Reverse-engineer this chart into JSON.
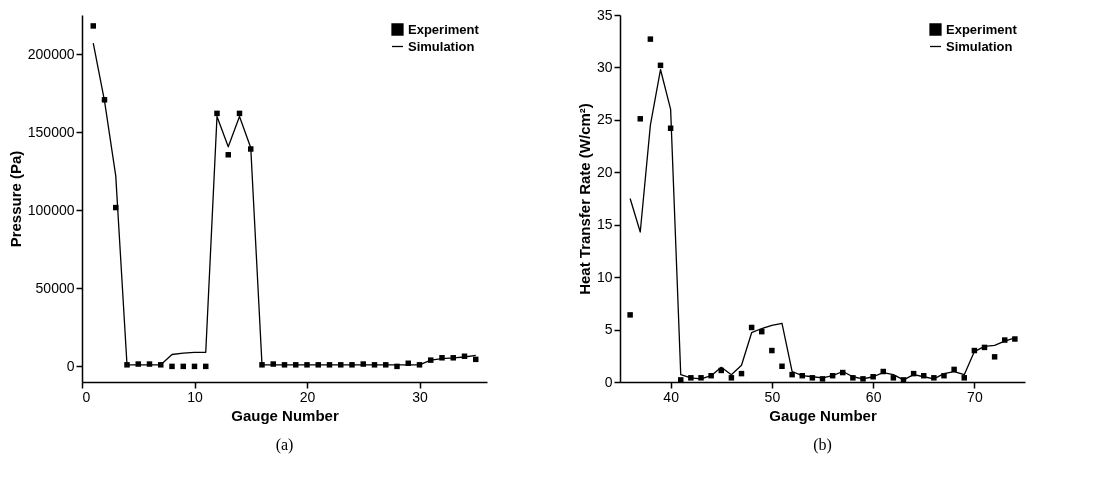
{
  "chart_data": [
    {
      "type": "scatter",
      "xlabel": "Gauge Number",
      "ylabel": "Pressure (Pa)",
      "annotations": [
        "(a)"
      ],
      "legend": "top right",
      "grid": false,
      "xlim": [
        0,
        36
      ],
      "xticks": [
        0,
        10,
        20,
        30
      ],
      "ylim": [
        -10000,
        225000
      ],
      "yticks": [
        0,
        50000,
        100000,
        150000,
        200000
      ],
      "x": [
        1,
        2,
        3,
        4,
        5,
        6,
        7,
        8,
        9,
        10,
        11,
        12,
        13,
        14,
        15,
        16,
        17,
        18,
        19,
        20,
        21,
        22,
        23,
        24,
        25,
        26,
        27,
        28,
        29,
        30,
        31,
        32,
        33,
        34,
        35
      ],
      "series": [
        {
          "name": "Experiment",
          "type": "scatter",
          "marker": "square",
          "color": "#000000",
          "values": [
            218000,
            170700,
            101700,
            1000,
            1500,
            1500,
            1000,
            0,
            0,
            0,
            0,
            162000,
            135500,
            162000,
            139200,
            1000,
            1500,
            1000,
            1000,
            1000,
            1000,
            1000,
            1000,
            1000,
            1500,
            1000,
            1000,
            0,
            2000,
            1000,
            4000,
            5500,
            5500,
            6500,
            4500
          ]
        },
        {
          "name": "Simulation",
          "type": "line",
          "marker": "none",
          "line_style": "solid",
          "color": "#000000",
          "values": [
            207000,
            170000,
            122000,
            1000,
            1000,
            1000,
            1000,
            7600,
            8500,
            9000,
            9000,
            160000,
            140600,
            160000,
            140000,
            1000,
            1000,
            1000,
            1000,
            1000,
            1000,
            1000,
            1000,
            1000,
            1000,
            1000,
            1000,
            1000,
            1000,
            1000,
            4000,
            5000,
            5500,
            6000,
            7000
          ]
        }
      ]
    },
    {
      "type": "scatter",
      "xlabel": "Gauge Number",
      "ylabel": "Heat Transfer Rate (W/cm²)",
      "annotations": [
        "(b)"
      ],
      "legend": "top right",
      "grid": false,
      "xlim": [
        35,
        75
      ],
      "xticks": [
        40,
        50,
        60,
        70
      ],
      "ylim": [
        0,
        35
      ],
      "yticks": [
        0,
        5,
        10,
        15,
        20,
        25,
        30,
        35
      ],
      "x": [
        36,
        37,
        38,
        39,
        40,
        41,
        42,
        43,
        44,
        45,
        46,
        47,
        48,
        49,
        50,
        51,
        52,
        53,
        54,
        55,
        56,
        57,
        58,
        59,
        60,
        61,
        62,
        63,
        64,
        65,
        66,
        67,
        68,
        69,
        70,
        71,
        72,
        73,
        74
      ],
      "series": [
        {
          "name": "Experiment",
          "type": "scatter",
          "marker": "square",
          "color": "#000000",
          "values": [
            6.4,
            25.1,
            32.7,
            30.2,
            24.2,
            0.2,
            0.4,
            0.4,
            0.6,
            1.1,
            0.4,
            0.8,
            5.2,
            4.8,
            3.0,
            1.5,
            0.7,
            0.6,
            0.4,
            0.3,
            0.6,
            0.9,
            0.4,
            0.3,
            0.5,
            1.0,
            0.4,
            0.2,
            0.8,
            0.6,
            0.4,
            0.6,
            1.2,
            0.4,
            3.0,
            3.3,
            2.4,
            4.0,
            4.1
          ]
        },
        {
          "name": "Simulation",
          "type": "line",
          "marker": "none",
          "line_style": "solid",
          "color": "#000000",
          "values": [
            17.5,
            14.3,
            24.5,
            29.8,
            26.0,
            0.7,
            0.4,
            0.3,
            0.6,
            1.4,
            0.7,
            1.6,
            4.7,
            5.1,
            5.4,
            5.6,
            1.0,
            0.6,
            0.5,
            0.4,
            0.6,
            1.0,
            0.5,
            0.3,
            0.5,
            0.9,
            0.7,
            0.2,
            0.7,
            0.5,
            0.3,
            0.8,
            1.0,
            0.7,
            2.9,
            3.4,
            3.5,
            3.9,
            4.2
          ]
        }
      ]
    }
  ]
}
